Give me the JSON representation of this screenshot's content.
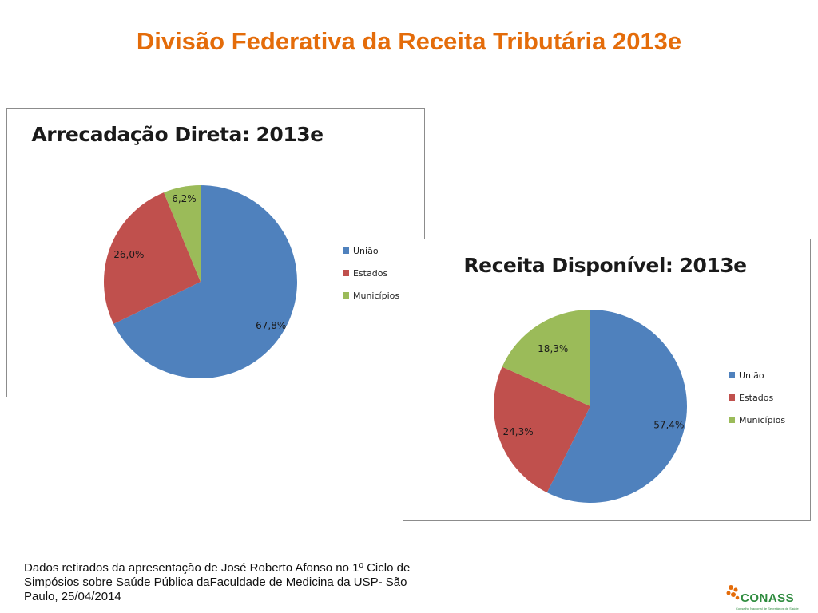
{
  "slide": {
    "title": "Divisão Federativa da Receita Tributária 2013e",
    "footnote": "Dados retirados da apresentação de José Roberto Afonso no 1º Ciclo de Simpósios sobre Saúde Pública daFaculdade de Medicina da USP- São Paulo, 25/04/2014",
    "logo": {
      "name": "CONASS",
      "subtitle": "Conselho Nacional de Secretários de Saúde"
    }
  },
  "colors": {
    "title": "#e46c0a",
    "uniao": "#4f81bd",
    "estados": "#c0504d",
    "municipios": "#9bbb59"
  },
  "chart_data": [
    {
      "type": "pie",
      "title": "Arrecadação Direta: 2013e",
      "categories": [
        "União",
        "Estados",
        "Municípios"
      ],
      "values": [
        67.8,
        26.0,
        6.2
      ],
      "labels": [
        "67,8%",
        "26,0%",
        "6,2%"
      ],
      "colors": [
        "#4f81bd",
        "#c0504d",
        "#9bbb59"
      ],
      "legend": [
        "União",
        "Estados",
        "Municípios"
      ],
      "legend_position": "right"
    },
    {
      "type": "pie",
      "title": "Receita Disponível: 2013e",
      "categories": [
        "União",
        "Estados",
        "Municípios"
      ],
      "values": [
        57.4,
        24.3,
        18.3
      ],
      "labels": [
        "57,4%",
        "24,3%",
        "18,3%"
      ],
      "colors": [
        "#4f81bd",
        "#c0504d",
        "#9bbb59"
      ],
      "legend": [
        "União",
        "Estados",
        "Municípios"
      ],
      "legend_position": "right"
    }
  ]
}
